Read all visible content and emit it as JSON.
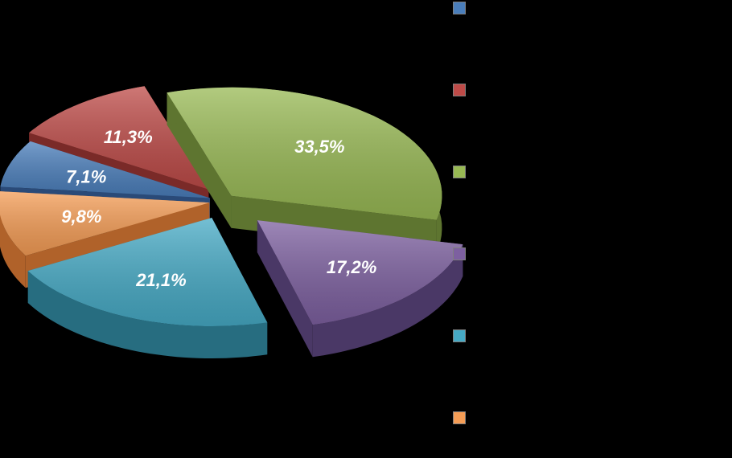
{
  "chart_data": {
    "type": "pie",
    "style": "3d-exploded",
    "title": "",
    "legend_position": "right",
    "slices": [
      {
        "label": "",
        "value": 7.1,
        "value_label": "7,1%",
        "color": "#4a7ebb",
        "side": "#2a4a78"
      },
      {
        "label": "",
        "value": 11.3,
        "value_label": "11,3%",
        "color": "#be4b48",
        "side": "#7a2a28"
      },
      {
        "label": "",
        "value": 33.5,
        "value_label": "33,5%",
        "color": "#98b954",
        "side": "#5e7530"
      },
      {
        "label": "",
        "value": 17.2,
        "value_label": "17,2%",
        "color": "#7d60a0",
        "side": "#4a3866"
      },
      {
        "label": "",
        "value": 21.1,
        "value_label": "21,1%",
        "color": "#46aac5",
        "side": "#276d80"
      },
      {
        "label": "",
        "value": 9.8,
        "value_label": "9,8%",
        "color": "#f59d56",
        "side": "#b0622a"
      }
    ]
  }
}
